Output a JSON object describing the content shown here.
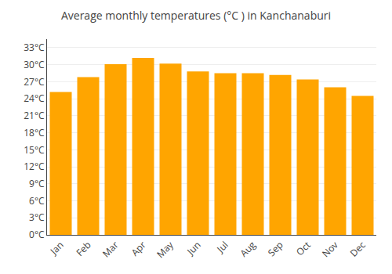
{
  "chart_data": {
    "type": "bar",
    "title": "Average monthly temperatures (°C ) in Kanchanaburi",
    "categories": [
      "Jan",
      "Feb",
      "Mar",
      "Apr",
      "May",
      "Jun",
      "Jul",
      "Aug",
      "Sep",
      "Oct",
      "Nov",
      "Dec"
    ],
    "values": [
      25.2,
      27.8,
      30.1,
      31.2,
      30.2,
      28.8,
      28.5,
      28.5,
      28.2,
      27.4,
      26.0,
      24.5
    ],
    "color": "#FFA500",
    "ylim": [
      0,
      34.5
    ],
    "yticks": [
      {
        "value": 0,
        "label": "0°C"
      },
      {
        "value": 3,
        "label": "3°C"
      },
      {
        "value": 6,
        "label": "6°C"
      },
      {
        "value": 9,
        "label": "9°C"
      },
      {
        "value": 12,
        "label": "12°C"
      },
      {
        "value": 15,
        "label": "15°C"
      },
      {
        "value": 18,
        "label": "18°C"
      },
      {
        "value": 21,
        "label": "21°C"
      },
      {
        "value": 24,
        "label": "24°C"
      },
      {
        "value": 27,
        "label": "27°C"
      },
      {
        "value": 30,
        "label": "30°C"
      },
      {
        "value": 33,
        "label": "33°C"
      }
    ],
    "grid": true
  }
}
